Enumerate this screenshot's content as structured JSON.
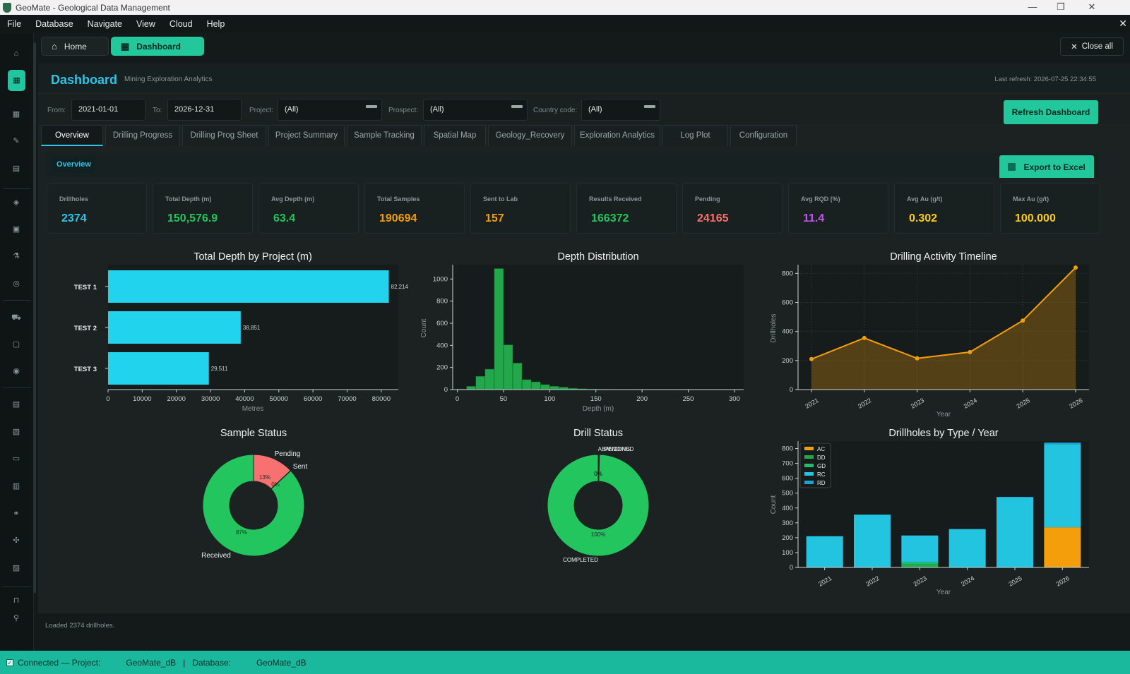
{
  "window": {
    "title": "GeoMate - Geological Data Management"
  },
  "menu": [
    "File",
    "Database",
    "Navigate",
    "View",
    "Cloud",
    "Help"
  ],
  "sidebar_icons": [
    "home-icon",
    "dashboard-icon",
    "grid-icon",
    "edit-icon",
    "table-icon",
    "shield-icon",
    "clipboard-icon",
    "flask-icon",
    "compass-icon",
    "truck-icon",
    "box-icon",
    "target-icon",
    "database-icon",
    "image-icon",
    "document-icon",
    "report-icon",
    "link-icon",
    "tools-icon",
    "chart-icon",
    "bookmark-icon",
    "search-icon"
  ],
  "window_tabs": {
    "home": "Home",
    "dashboard": "Dashboard",
    "close_all": "Close all"
  },
  "page": {
    "title": "Dashboard",
    "subtitle": "Mining Exploration Analytics",
    "last_refresh": "Last refresh: 2026-07-25 22:34:55"
  },
  "filters": {
    "from_label": "From:",
    "from_value": "2021-01-01",
    "to_label": "To:",
    "to_value": "2026-12-31",
    "project_label": "Project:",
    "project_value": "(All)",
    "prospect_label": "Prospect:",
    "prospect_value": "(All)",
    "country_label": "Country code:",
    "country_value": "(All)",
    "refresh_button": "Refresh Dashboard"
  },
  "tabs": [
    "Overview",
    "Drilling Progress",
    "Drilling Prog Sheet",
    "Project Summary",
    "Sample Tracking",
    "Spatial Map",
    "Geology_Recovery",
    "Exploration Analytics",
    "Log Plot",
    "Configuration"
  ],
  "section": {
    "label": "Overview",
    "export_button": "Export to Excel"
  },
  "kpis": [
    {
      "label": "Drillholes",
      "value": "2374",
      "color": "#2ec4e8"
    },
    {
      "label": "Total Depth (m)",
      "value": "150,576.9",
      "color": "#22c55e"
    },
    {
      "label": "Avg Depth (m)",
      "value": "63.4",
      "color": "#22c55e"
    },
    {
      "label": "Total Samples",
      "value": "190694",
      "color": "#f59e0b"
    },
    {
      "label": "Sent to Lab",
      "value": "157",
      "color": "#f59e0b"
    },
    {
      "label": "Results Received",
      "value": "166372",
      "color": "#22c55e"
    },
    {
      "label": "Pending",
      "value": "24165",
      "color": "#f87171"
    },
    {
      "label": "Avg RQD (%)",
      "value": "11.4",
      "color": "#c055f0"
    },
    {
      "label": "Avg Au (g/t)",
      "value": "0.302",
      "color": "#facc15"
    },
    {
      "label": "Max Au (g/t)",
      "value": "100.000",
      "color": "#facc15"
    }
  ],
  "chart_data": [
    {
      "type": "bar",
      "orientation": "horizontal",
      "title": "Total Depth by Project (m)",
      "categories": [
        "TEST 1",
        "TEST 2",
        "TEST 3"
      ],
      "values": [
        82214,
        38851,
        29511
      ],
      "value_labels": [
        "82,214",
        "38,851",
        "29,511"
      ],
      "xlabel": "Metres",
      "xlim": [
        0,
        85000
      ],
      "xticks": [
        0,
        10000,
        20000,
        30000,
        40000,
        50000,
        60000,
        70000,
        80000
      ],
      "color": "#22d3ee"
    },
    {
      "type": "bar",
      "subtype": "histogram",
      "title": "Depth Distribution",
      "xlabel": "Depth (m)",
      "ylabel": "Count",
      "bin_width": 10,
      "bin_starts": [
        0,
        10,
        20,
        30,
        40,
        50,
        60,
        70,
        80,
        90,
        100,
        110,
        120,
        130,
        140,
        150,
        160,
        170,
        180,
        190
      ],
      "values": [
        5,
        30,
        120,
        185,
        1095,
        405,
        240,
        90,
        70,
        45,
        30,
        22,
        12,
        8,
        5,
        3,
        2,
        1,
        1,
        1
      ],
      "xlim": [
        -5,
        310
      ],
      "ylim": [
        0,
        1130
      ],
      "xticks": [
        0,
        50,
        100,
        150,
        200,
        250,
        300
      ],
      "yticks": [
        0,
        200,
        400,
        600,
        800,
        1000
      ],
      "color": "#22a84a"
    },
    {
      "type": "area",
      "title": "Drilling Activity Timeline",
      "xlabel": "Year",
      "ylabel": "Drillholes",
      "x": [
        "2021",
        "2022",
        "2023",
        "2024",
        "2025",
        "2026"
      ],
      "values": [
        210,
        355,
        215,
        258,
        475,
        840
      ],
      "ylim": [
        0,
        860
      ],
      "yticks": [
        0,
        200,
        400,
        600,
        800
      ],
      "grid": true,
      "color": "#f59e0b"
    },
    {
      "type": "pie",
      "subtype": "donut",
      "title": "Sample Status",
      "labels": [
        "Pending",
        "Sent",
        "Received"
      ],
      "values": [
        13,
        0.1,
        87
      ],
      "pct_labels": [
        "13%",
        "0%",
        "87%"
      ],
      "colors": [
        "#f87171",
        "#f59e0b",
        "#22c55e"
      ]
    },
    {
      "type": "pie",
      "subtype": "donut",
      "title": "Drill Status",
      "labels": [
        "ABANDONED",
        "PENDING",
        "COMPLETED"
      ],
      "values": [
        0.2,
        0.2,
        99.6
      ],
      "pct_labels": [
        "0%",
        "0%",
        "100%"
      ],
      "colors": [
        "#9ca3af",
        "#f59e0b",
        "#22c55e"
      ]
    },
    {
      "type": "bar",
      "stacked": true,
      "title": "Drillholes by Type / Year",
      "xlabel": "Year",
      "ylabel": "Count",
      "categories": [
        "2021",
        "2022",
        "2023",
        "2024",
        "2025",
        "2026"
      ],
      "series": [
        {
          "name": "AC",
          "values": [
            0,
            0,
            0,
            0,
            0,
            270
          ],
          "color": "#f59e0b"
        },
        {
          "name": "DD",
          "values": [
            0,
            0,
            20,
            0,
            0,
            0
          ],
          "color": "#22a84a"
        },
        {
          "name": "GD",
          "values": [
            0,
            0,
            15,
            0,
            0,
            0
          ],
          "color": "#1fbf6a"
        },
        {
          "name": "RC",
          "values": [
            210,
            355,
            180,
            258,
            470,
            560
          ],
          "color": "#22c4e0"
        },
        {
          "name": "RD",
          "values": [
            0,
            0,
            0,
            0,
            5,
            10
          ],
          "color": "#1aa4d6"
        }
      ],
      "ylim": [
        0,
        850
      ],
      "yticks": [
        0,
        100,
        200,
        300,
        400,
        500,
        600,
        700,
        800
      ],
      "legend": "top-left"
    }
  ],
  "status": {
    "loaded": "Loaded 2374 drillholes.",
    "connection": "Connected — Project:",
    "project": "GeoMate_dB",
    "sep": "|",
    "database_label": "Database:",
    "database": "GeoMate_dB"
  }
}
